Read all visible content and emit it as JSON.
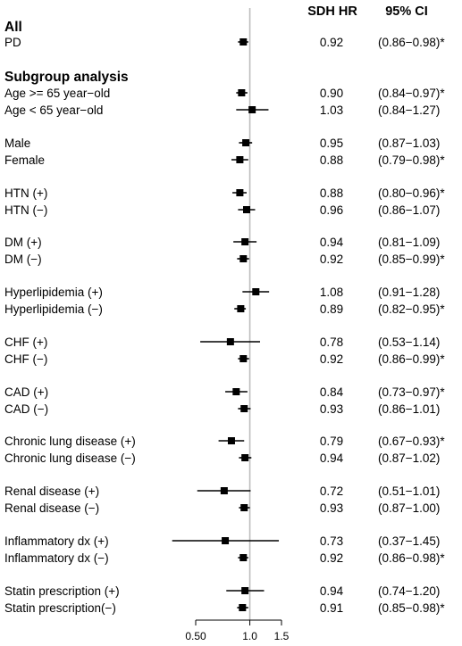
{
  "chart_data": {
    "type": "forest",
    "columns": {
      "estimate": "SDH HR",
      "ci": "95% CI"
    },
    "sections": [
      "All",
      "Subgroup analysis"
    ],
    "x_axis": {
      "scale": "log",
      "reference": 1.0,
      "ticks": [
        0.5,
        1.0,
        1.5
      ],
      "tick_labels": [
        "0.50",
        "1.0",
        "1.5"
      ]
    },
    "rows": [
      {
        "section": 0,
        "label": "PD",
        "hr": 0.92,
        "lo": 0.86,
        "hi": 0.98,
        "hr_text": "0.92",
        "ci_text": "(0.86−0.98)*"
      },
      {
        "section": 1,
        "label": "Age >= 65 year−old",
        "hr": 0.9,
        "lo": 0.84,
        "hi": 0.97,
        "hr_text": "0.90",
        "ci_text": "(0.84−0.97)*"
      },
      {
        "section": 1,
        "label": "Age < 65 year−old",
        "hr": 1.03,
        "lo": 0.84,
        "hi": 1.27,
        "hr_text": "1.03",
        "ci_text": "(0.84−1.27)"
      },
      {
        "section": 1,
        "label": "Male",
        "hr": 0.95,
        "lo": 0.87,
        "hi": 1.03,
        "hr_text": "0.95",
        "ci_text": "(0.87−1.03)"
      },
      {
        "section": 1,
        "label": "Female",
        "hr": 0.88,
        "lo": 0.79,
        "hi": 0.98,
        "hr_text": "0.88",
        "ci_text": "(0.79−0.98)*"
      },
      {
        "section": 1,
        "label": "HTN (+)",
        "hr": 0.88,
        "lo": 0.8,
        "hi": 0.96,
        "hr_text": "0.88",
        "ci_text": "(0.80−0.96)*"
      },
      {
        "section": 1,
        "label": "HTN (−)",
        "hr": 0.96,
        "lo": 0.86,
        "hi": 1.07,
        "hr_text": "0.96",
        "ci_text": "(0.86−1.07)"
      },
      {
        "section": 1,
        "label": "DM (+)",
        "hr": 0.94,
        "lo": 0.81,
        "hi": 1.09,
        "hr_text": "0.94",
        "ci_text": "(0.81−1.09)"
      },
      {
        "section": 1,
        "label": "DM (−)",
        "hr": 0.92,
        "lo": 0.85,
        "hi": 0.99,
        "hr_text": "0.92",
        "ci_text": "(0.85−0.99)*"
      },
      {
        "section": 1,
        "label": "Hyperlipidemia (+)",
        "hr": 1.08,
        "lo": 0.91,
        "hi": 1.28,
        "hr_text": "1.08",
        "ci_text": "(0.91−1.28)"
      },
      {
        "section": 1,
        "label": "Hyperlipidemia (−)",
        "hr": 0.89,
        "lo": 0.82,
        "hi": 0.95,
        "hr_text": "0.89",
        "ci_text": "(0.82−0.95)*"
      },
      {
        "section": 1,
        "label": "CHF (+)",
        "hr": 0.78,
        "lo": 0.53,
        "hi": 1.14,
        "hr_text": "0.78",
        "ci_text": "(0.53−1.14)"
      },
      {
        "section": 1,
        "label": "CHF (−)",
        "hr": 0.92,
        "lo": 0.86,
        "hi": 0.99,
        "hr_text": "0.92",
        "ci_text": "(0.86−0.99)*"
      },
      {
        "section": 1,
        "label": "CAD (+)",
        "hr": 0.84,
        "lo": 0.73,
        "hi": 0.97,
        "hr_text": "0.84",
        "ci_text": "(0.73−0.97)*"
      },
      {
        "section": 1,
        "label": "CAD (−)",
        "hr": 0.93,
        "lo": 0.86,
        "hi": 1.01,
        "hr_text": "0.93",
        "ci_text": "(0.86−1.01)"
      },
      {
        "section": 1,
        "label": "Chronic lung disease (+)",
        "hr": 0.79,
        "lo": 0.67,
        "hi": 0.93,
        "hr_text": "0.79",
        "ci_text": "(0.67−0.93)*"
      },
      {
        "section": 1,
        "label": "Chronic lung disease (−)",
        "hr": 0.94,
        "lo": 0.87,
        "hi": 1.02,
        "hr_text": "0.94",
        "ci_text": "(0.87−1.02)"
      },
      {
        "section": 1,
        "label": "Renal disease (+)",
        "hr": 0.72,
        "lo": 0.51,
        "hi": 1.01,
        "hr_text": "0.72",
        "ci_text": "(0.51−1.01)"
      },
      {
        "section": 1,
        "label": "Renal disease (−)",
        "hr": 0.93,
        "lo": 0.87,
        "hi": 1.0,
        "hr_text": "0.93",
        "ci_text": "(0.87−1.00)"
      },
      {
        "section": 1,
        "label": "Inflammatory dx (+)",
        "hr": 0.73,
        "lo": 0.37,
        "hi": 1.45,
        "hr_text": "0.73",
        "ci_text": "(0.37−1.45)"
      },
      {
        "section": 1,
        "label": "Inflammatory dx (−)",
        "hr": 0.92,
        "lo": 0.86,
        "hi": 0.98,
        "hr_text": "0.92",
        "ci_text": "(0.86−0.98)*"
      },
      {
        "section": 1,
        "label": "Statin prescription (+)",
        "hr": 0.94,
        "lo": 0.74,
        "hi": 1.2,
        "hr_text": "0.94",
        "ci_text": "(0.74−1.20)"
      },
      {
        "section": 1,
        "label": "Statin prescription(−)",
        "hr": 0.91,
        "lo": 0.85,
        "hi": 0.98,
        "hr_text": "0.91",
        "ci_text": "(0.85−0.98)*"
      }
    ],
    "colors": {
      "marks": "#000000",
      "reference_line": "#bdbdbd"
    }
  }
}
